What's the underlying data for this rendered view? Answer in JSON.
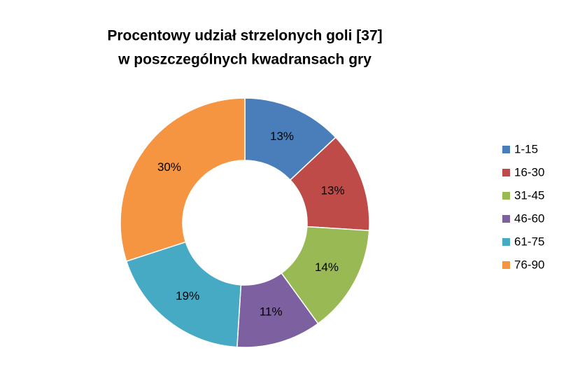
{
  "chart_data": {
    "type": "donut",
    "title": [
      "Procentowy udział strzelonych goli [37]",
      "w poszczególnych kwadransach  gry"
    ],
    "categories": [
      "1-15",
      "16-30",
      "31-45",
      "46-60",
      "61-75",
      "76-90"
    ],
    "values": [
      13,
      13,
      14,
      11,
      19,
      30
    ],
    "value_labels": [
      "13%",
      "13%",
      "14%",
      "11%",
      "19%",
      "30%"
    ],
    "colors": [
      "#4a7ebb",
      "#be4b48",
      "#98b954",
      "#7d60a0",
      "#46aac5",
      "#f59542"
    ],
    "legend": "right"
  }
}
